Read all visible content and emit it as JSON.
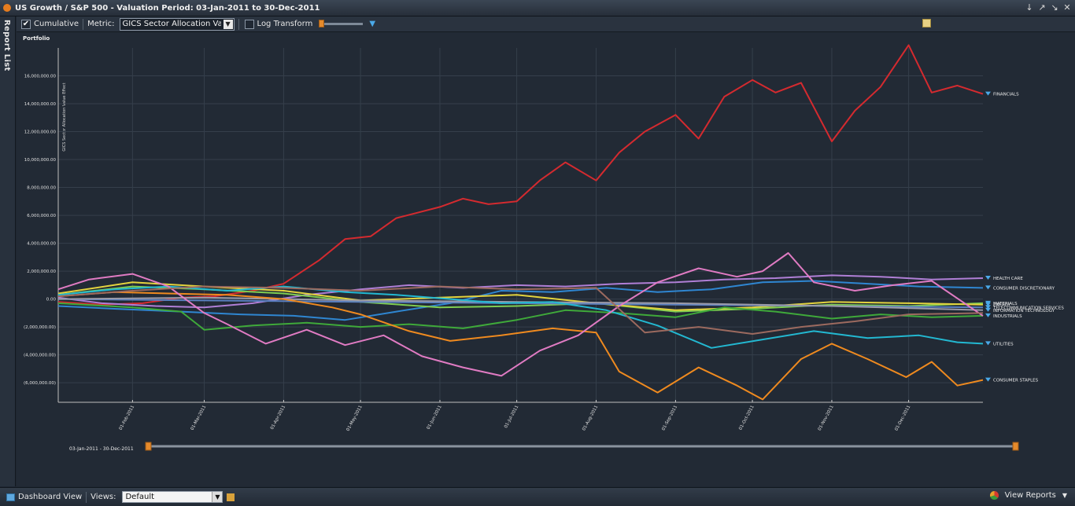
{
  "window": {
    "title": "US Growth / S&P 500 - Valuation Period: 03-Jan-2011 to 30-Dec-2011",
    "controls": [
      "↓",
      "↗",
      "↘",
      "✕"
    ]
  },
  "sidebar": {
    "label": "Report List"
  },
  "toolbar": {
    "cumulative_label": "Cumulative",
    "cumulative_checked": true,
    "metric_label": "Metric:",
    "metric_value": "GICS Sector Allocation Value",
    "log_transform_label": "Log Transform",
    "log_transform_checked": false
  },
  "footer": {
    "dashboard_view": "Dashboard View",
    "views_label": "Views:",
    "views_value": "Default",
    "view_reports": "View Reports"
  },
  "chart_data": {
    "type": "line",
    "title": "Portfolio",
    "ylabel": "GICS Sector Allocation Value Effect",
    "xlabel": "",
    "ylim": [
      -7400000,
      18000000
    ],
    "xlim": [
      "2011-01-03",
      "2011-12-30"
    ],
    "yticks": [
      16000000,
      14000000,
      12000000,
      10000000,
      8000000,
      6000000,
      4000000,
      2000000,
      0,
      -2000000,
      -4000000,
      -6000000
    ],
    "ytick_labels": [
      "16,000,000.00",
      "14,000,000.00",
      "12,000,000.00",
      "10,000,000.00",
      "8,000,000.00",
      "6,000,000.00",
      "4,000,000.00",
      "2,000,000.00",
      "0.00",
      "(2,000,000.00)",
      "(4,000,000.00)",
      "(6,000,000.00)"
    ],
    "xticks": [
      "2011-02-01",
      "2011-03-01",
      "2011-04-01",
      "2011-05-01",
      "2011-06-01",
      "2011-07-01",
      "2011-08-01",
      "2011-09-01",
      "2011-10-01",
      "2011-11-01",
      "2011-12-01"
    ],
    "xtick_labels": [
      "01-Feb-2011",
      "01-Mar-2011",
      "01-Apr-2011",
      "01-May-2011",
      "01-Jun-2011",
      "01-Jul-2011",
      "01-Aug-2011",
      "01-Sep-2011",
      "01-Oct-2011",
      "01-Nov-2011",
      "01-Dec-2011"
    ],
    "grid": true,
    "legend": "right (end-of-line labels)",
    "range_slider_label": "03-Jan-2011 - 30-Dec-2011",
    "series": [
      {
        "name": "FINANCIALS",
        "color": "#d42a2f",
        "x": [
          "2011-01-03",
          "2011-01-20",
          "2011-02-05",
          "2011-02-20",
          "2011-03-05",
          "2011-03-20",
          "2011-04-01",
          "2011-04-15",
          "2011-04-25",
          "2011-05-05",
          "2011-05-15",
          "2011-06-01",
          "2011-06-10",
          "2011-06-20",
          "2011-07-01",
          "2011-07-10",
          "2011-07-20",
          "2011-08-01",
          "2011-08-10",
          "2011-08-20",
          "2011-09-01",
          "2011-09-10",
          "2011-09-20",
          "2011-10-01",
          "2011-10-10",
          "2011-10-20",
          "2011-11-01",
          "2011-11-10",
          "2011-11-20",
          "2011-12-01",
          "2011-12-10",
          "2011-12-20",
          "2011-12-30"
        ],
        "y": [
          -200000,
          -400000,
          -300000,
          100000,
          200000,
          600000,
          1100000,
          2800000,
          4300000,
          4500000,
          5800000,
          6600000,
          7200000,
          6800000,
          7000000,
          8500000,
          9800000,
          8500000,
          10500000,
          12000000,
          13200000,
          11500000,
          14500000,
          15700000,
          14800000,
          15500000,
          11300000,
          13500000,
          15200000,
          18200000,
          14800000,
          15300000,
          14700000
        ]
      },
      {
        "name": "HEALTH CARE",
        "color": "#b07fd6",
        "x": [
          "2011-01-03",
          "2011-01-20",
          "2011-02-10",
          "2011-03-01",
          "2011-03-20",
          "2011-04-10",
          "2011-05-01",
          "2011-05-20",
          "2011-06-10",
          "2011-07-01",
          "2011-07-20",
          "2011-08-10",
          "2011-09-01",
          "2011-09-20",
          "2011-10-10",
          "2011-11-01",
          "2011-11-20",
          "2011-12-10",
          "2011-12-30"
        ],
        "y": [
          100000,
          -300000,
          -500000,
          -600000,
          -300000,
          300000,
          700000,
          1000000,
          800000,
          1000000,
          900000,
          1100000,
          1200000,
          1400000,
          1500000,
          1700000,
          1600000,
          1400000,
          1500000
        ]
      },
      {
        "name": "CONSUMER DISCRETIONARY",
        "color": "#2f86d1",
        "x": [
          "2011-01-03",
          "2011-01-25",
          "2011-02-20",
          "2011-03-15",
          "2011-04-05",
          "2011-04-25",
          "2011-05-15",
          "2011-06-05",
          "2011-06-25",
          "2011-07-15",
          "2011-08-05",
          "2011-08-25",
          "2011-09-15",
          "2011-10-05",
          "2011-10-25",
          "2011-11-15",
          "2011-12-05",
          "2011-12-30"
        ],
        "y": [
          -500000,
          -700000,
          -900000,
          -1100000,
          -1200000,
          -1500000,
          -900000,
          -300000,
          600000,
          500000,
          800000,
          500000,
          700000,
          1200000,
          1300000,
          1100000,
          900000,
          800000
        ]
      },
      {
        "name": "MATERIALS",
        "color": "#7fcd51",
        "x": [
          "2011-01-03",
          "2011-02-01",
          "2011-03-01",
          "2011-04-01",
          "2011-05-01",
          "2011-06-01",
          "2011-07-01",
          "2011-08-01",
          "2011-09-01",
          "2011-10-01",
          "2011-11-01",
          "2011-12-01",
          "2011-12-30"
        ],
        "y": [
          300000,
          900000,
          700000,
          400000,
          -200000,
          -600000,
          -500000,
          -300000,
          -900000,
          -700000,
          -400000,
          -500000,
          -300000
        ]
      },
      {
        "name": "ENERGY",
        "color": "#e3d33e",
        "x": [
          "2011-01-03",
          "2011-02-01",
          "2011-03-01",
          "2011-04-01",
          "2011-05-01",
          "2011-06-01",
          "2011-07-01",
          "2011-08-01",
          "2011-09-01",
          "2011-10-01",
          "2011-11-01",
          "2011-12-01",
          "2011-12-30"
        ],
        "y": [
          400000,
          1200000,
          900000,
          600000,
          -100000,
          100000,
          300000,
          -300000,
          -800000,
          -600000,
          -200000,
          -300000,
          -400000
        ]
      },
      {
        "name": "TELECOMMUNICATION SERVICES",
        "color": "#5a7fbf",
        "x": [
          "2011-01-03",
          "2011-03-01",
          "2011-05-01",
          "2011-07-01",
          "2011-09-01",
          "2011-11-01",
          "2011-12-30"
        ],
        "y": [
          0,
          -100000,
          -200000,
          -300000,
          -400000,
          -500000,
          -600000
        ]
      },
      {
        "name": "INFORMATION TECHNOLOGY",
        "color": "#9a9aa8",
        "x": [
          "2011-01-03",
          "2011-03-01",
          "2011-05-01",
          "2011-07-01",
          "2011-09-01",
          "2011-11-01",
          "2011-12-30"
        ],
        "y": [
          0,
          100000,
          -100000,
          -200000,
          -300000,
          -500000,
          -800000
        ]
      },
      {
        "name": "INDUSTRIALS",
        "color": "#3fa93a",
        "x": [
          "2011-01-03",
          "2011-02-01",
          "2011-02-20",
          "2011-03-01",
          "2011-03-20",
          "2011-04-10",
          "2011-05-01",
          "2011-05-20",
          "2011-06-10",
          "2011-07-01",
          "2011-07-20",
          "2011-08-10",
          "2011-09-01",
          "2011-09-20",
          "2011-10-10",
          "2011-11-01",
          "2011-11-20",
          "2011-12-10",
          "2011-12-30"
        ],
        "y": [
          -300000,
          -600000,
          -900000,
          -2200000,
          -1900000,
          -1700000,
          -2000000,
          -1800000,
          -2100000,
          -1500000,
          -800000,
          -1000000,
          -1300000,
          -600000,
          -900000,
          -1400000,
          -1100000,
          -1300000,
          -1200000
        ]
      },
      {
        "name": "UTILITIES",
        "color": "#23b8d1",
        "x": [
          "2011-01-03",
          "2011-01-25",
          "2011-02-15",
          "2011-03-10",
          "2011-04-01",
          "2011-04-25",
          "2011-05-15",
          "2011-06-05",
          "2011-06-25",
          "2011-07-15",
          "2011-08-05",
          "2011-08-25",
          "2011-09-15",
          "2011-10-05",
          "2011-10-25",
          "2011-11-15",
          "2011-12-05",
          "2011-12-20",
          "2011-12-30"
        ],
        "y": [
          300000,
          700000,
          900000,
          600000,
          900000,
          500000,
          300000,
          0,
          -300000,
          -200000,
          -800000,
          -1900000,
          -3500000,
          -2900000,
          -2300000,
          -2800000,
          -2600000,
          -3100000,
          -3200000
        ]
      },
      {
        "name": "CONSUMER STAPLES",
        "color": "#ef8a1f",
        "x": [
          "2011-01-03",
          "2011-01-25",
          "2011-02-15",
          "2011-03-10",
          "2011-04-01",
          "2011-04-20",
          "2011-05-01",
          "2011-05-20",
          "2011-06-05",
          "2011-06-25",
          "2011-07-15",
          "2011-08-01",
          "2011-08-10",
          "2011-08-25",
          "2011-09-10",
          "2011-09-25",
          "2011-10-05",
          "2011-10-20",
          "2011-11-01",
          "2011-11-15",
          "2011-11-30",
          "2011-12-10",
          "2011-12-20",
          "2011-12-30"
        ],
        "y": [
          200000,
          500000,
          400000,
          300000,
          0,
          -600000,
          -1100000,
          -2300000,
          -3000000,
          -2600000,
          -2100000,
          -2400000,
          -5200000,
          -6700000,
          -4900000,
          -6200000,
          -7200000,
          -4300000,
          -3200000,
          -4300000,
          -5600000,
          -4500000,
          -6200000,
          -5800000
        ]
      },
      {
        "name": "",
        "color": "#e07bc3",
        "x": [
          "2011-01-03",
          "2011-01-15",
          "2011-02-01",
          "2011-02-15",
          "2011-03-01",
          "2011-03-10",
          "2011-03-25",
          "2011-04-10",
          "2011-04-25",
          "2011-05-10",
          "2011-05-25",
          "2011-06-10",
          "2011-06-25",
          "2011-07-10",
          "2011-07-25",
          "2011-08-10",
          "2011-08-25",
          "2011-09-10",
          "2011-09-25",
          "2011-10-05",
          "2011-10-15",
          "2011-10-25",
          "2011-11-10",
          "2011-11-25",
          "2011-12-10",
          "2011-12-30"
        ],
        "y": [
          700000,
          1400000,
          1800000,
          900000,
          -1000000,
          -1800000,
          -3200000,
          -2200000,
          -3300000,
          -2600000,
          -4100000,
          -4900000,
          -5500000,
          -3700000,
          -2600000,
          -500000,
          1200000,
          2200000,
          1600000,
          2000000,
          3300000,
          1200000,
          600000,
          1000000,
          1300000,
          -1200000
        ]
      },
      {
        "name": "",
        "color": "#9c6a5f",
        "x": [
          "2011-01-03",
          "2011-02-01",
          "2011-03-01",
          "2011-04-01",
          "2011-05-01",
          "2011-06-01",
          "2011-07-01",
          "2011-08-01",
          "2011-08-20",
          "2011-09-10",
          "2011-10-01",
          "2011-10-20",
          "2011-11-10",
          "2011-12-01",
          "2011-12-30"
        ],
        "y": [
          200000,
          600000,
          900000,
          800000,
          600000,
          900000,
          700000,
          800000,
          -2400000,
          -2000000,
          -2500000,
          -2000000,
          -1600000,
          -1100000,
          -1000000
        ]
      }
    ]
  }
}
